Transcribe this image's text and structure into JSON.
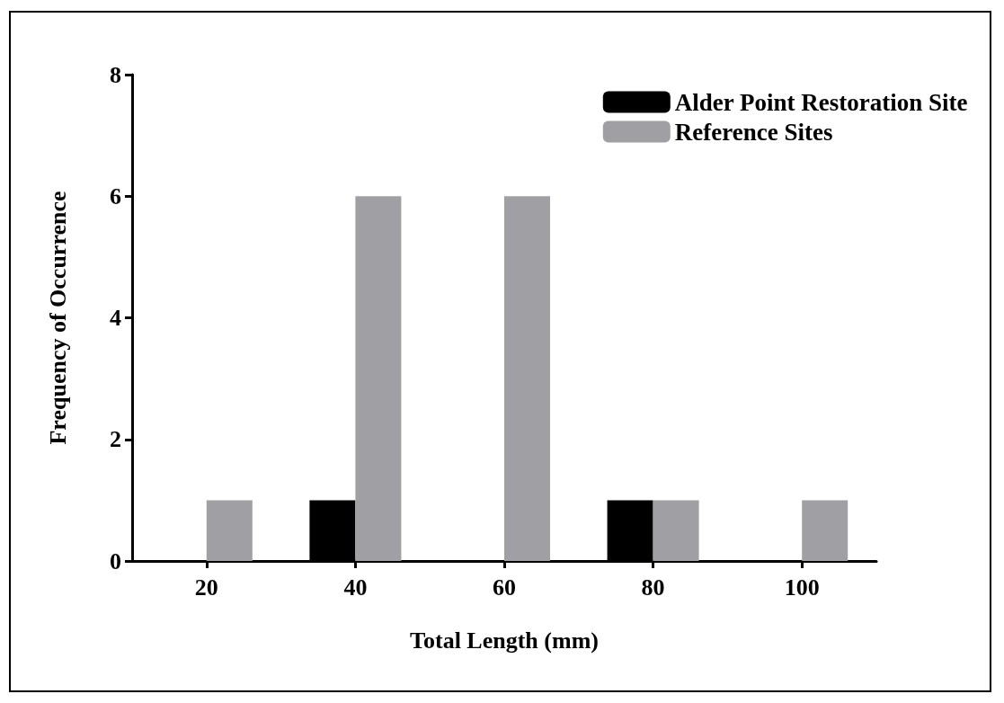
{
  "chart_data": {
    "type": "bar",
    "xlabel": "Total Length (mm)",
    "ylabel": "Frequency of Occurrence",
    "categories": [
      "20",
      "40",
      "60",
      "80",
      "100"
    ],
    "series": [
      {
        "name": "Alder Point Restoration Site",
        "color": "#000000",
        "values": [
          0,
          1,
          0,
          1,
          0
        ]
      },
      {
        "name": "Reference Sites",
        "color": "#a0a0a4",
        "values": [
          1,
          6,
          6,
          1,
          1
        ]
      }
    ],
    "ylim": [
      0,
      8
    ],
    "yticks": [
      0,
      2,
      4,
      6,
      8
    ],
    "grid": false,
    "legend": "top right"
  }
}
